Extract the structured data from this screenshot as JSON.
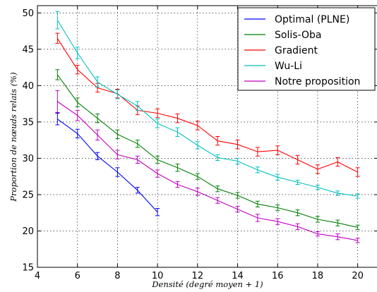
{
  "chart_data": {
    "type": "line",
    "xlabel": "Densité (degré moyen + 1)",
    "ylabel": "Proportion de nœuds relais (%)",
    "xlim": [
      4,
      21
    ],
    "ylim": [
      15,
      51
    ],
    "xticks": [
      4,
      6,
      8,
      10,
      12,
      14,
      16,
      18,
      20
    ],
    "yticks": [
      15,
      20,
      25,
      30,
      35,
      40,
      45,
      50
    ],
    "grid": true,
    "legend_position": "top-right",
    "series": [
      {
        "name": "Optimal (PLNE)",
        "color": "#0000ff",
        "x": [
          5,
          6,
          7,
          8,
          9,
          10
        ],
        "y": [
          35.4,
          33.4,
          30.3,
          28.1,
          25.6,
          22.6
        ],
        "err": [
          0.8,
          0.6,
          0.5,
          0.6,
          0.4,
          0.5
        ]
      },
      {
        "name": "Solis-Oba",
        "color": "#008000",
        "x": [
          5,
          6,
          7,
          8,
          9,
          10,
          11,
          12,
          13,
          14,
          15,
          16,
          17,
          18,
          19,
          20
        ],
        "y": [
          41.5,
          37.7,
          35.5,
          33.3,
          32.0,
          29.8,
          28.7,
          27.5,
          25.8,
          24.9,
          23.7,
          23.2,
          22.5,
          21.6,
          21.1,
          20.5
        ],
        "err": [
          0.7,
          0.6,
          0.6,
          0.6,
          0.5,
          0.5,
          0.5,
          0.4,
          0.4,
          0.4,
          0.4,
          0.4,
          0.4,
          0.4,
          0.4,
          0.3
        ]
      },
      {
        "name": "Gradient",
        "color": "#ff0000",
        "x": [
          5,
          6,
          7,
          8,
          9,
          10,
          11,
          12,
          13,
          14,
          15,
          16,
          17,
          18,
          19,
          20
        ],
        "y": [
          46.5,
          42.2,
          39.7,
          38.9,
          36.6,
          36.2,
          35.5,
          34.5,
          32.4,
          31.9,
          30.9,
          31.1,
          29.8,
          28.5,
          29.5,
          28.1
        ],
        "err": [
          0.7,
          0.6,
          0.6,
          0.6,
          0.6,
          0.6,
          0.6,
          0.6,
          0.6,
          0.6,
          0.6,
          0.6,
          0.6,
          0.6,
          0.6,
          0.6
        ]
      },
      {
        "name": "Wu-Li",
        "color": "#00bfbf",
        "x": [
          5,
          6,
          7,
          8,
          9,
          10,
          11,
          12,
          13,
          14,
          15,
          16,
          17,
          18,
          19,
          20
        ],
        "y": [
          49.0,
          44.5,
          40.5,
          38.8,
          37.2,
          34.8,
          33.6,
          31.8,
          30.1,
          29.6,
          28.4,
          27.4,
          26.7,
          26.0,
          25.2,
          24.8
        ],
        "err": [
          1.2,
          0.8,
          0.7,
          0.6,
          0.6,
          0.6,
          0.6,
          0.5,
          0.4,
          0.4,
          0.4,
          0.4,
          0.3,
          0.3,
          0.3,
          0.3
        ]
      },
      {
        "name": "Notre proposition",
        "color": "#bf00bf",
        "x": [
          5,
          6,
          7,
          8,
          9,
          10,
          11,
          12,
          13,
          14,
          15,
          16,
          17,
          18,
          19,
          20
        ],
        "y": [
          37.8,
          35.9,
          33.2,
          30.5,
          29.8,
          27.9,
          26.4,
          25.4,
          24.2,
          23.0,
          21.8,
          21.3,
          20.6,
          19.6,
          19.2,
          18.7
        ],
        "err": [
          1.5,
          0.7,
          0.7,
          0.6,
          0.5,
          0.5,
          0.4,
          0.5,
          0.4,
          0.4,
          0.5,
          0.4,
          0.4,
          0.3,
          0.4,
          0.3
        ]
      }
    ]
  }
}
